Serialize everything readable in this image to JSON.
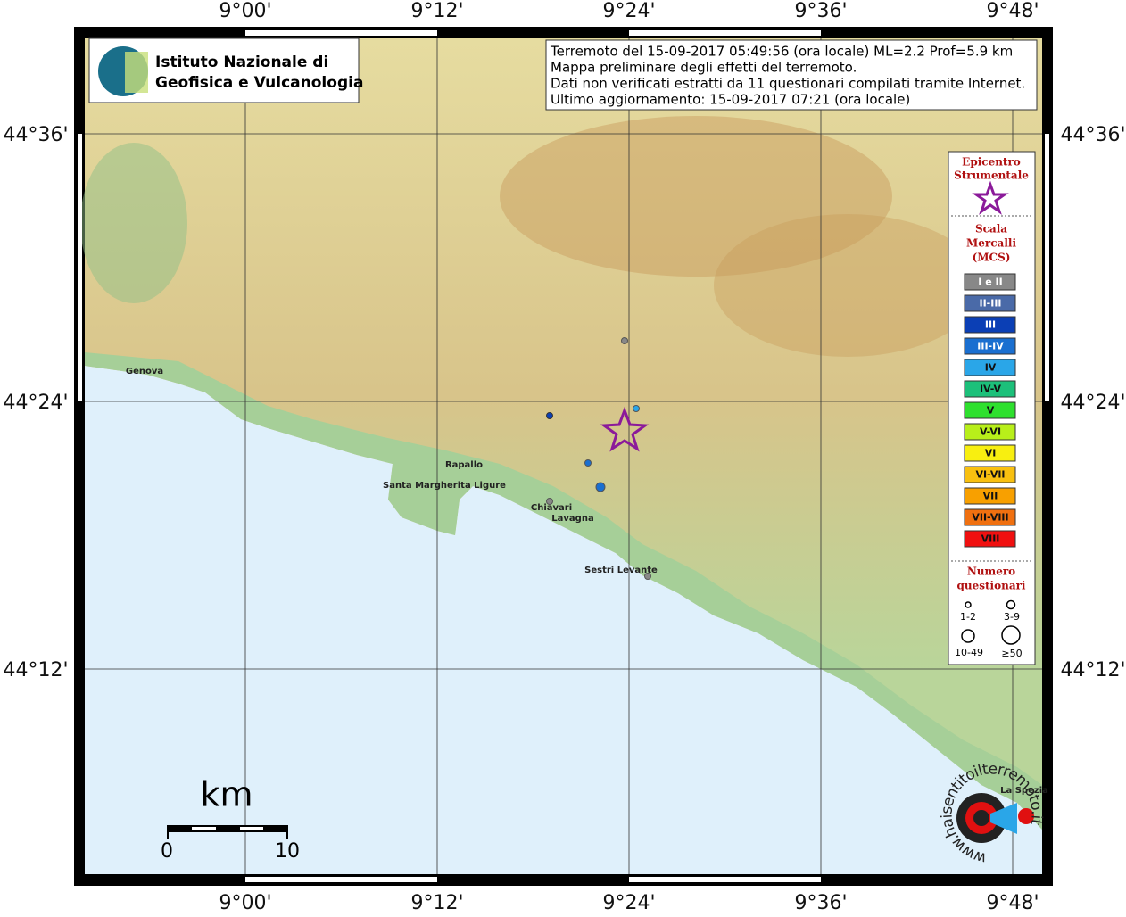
{
  "logo": {
    "line1": "Istituto Nazionale di",
    "line2": "Geofisica e Vulcanologia"
  },
  "info": [
    "Terremoto del 15-09-2017 05:49:56 (ora locale) ML=2.2 Prof=5.9 km",
    "Mappa preliminare degli effetti del terremoto.",
    "Dati non verificati estratti da 11 questionari compilati tramite Internet.",
    "Ultimo aggiornamento: 15-09-2017 07:21 (ora locale)"
  ],
  "lon_labels": [
    "9°00'",
    "9°12'",
    "9°24'",
    "9°36'",
    "9°48'"
  ],
  "lat_labels": [
    "44°36'",
    "44°24'",
    "44°12'"
  ],
  "cities": [
    "Genova",
    "Rapallo",
    "Santa Margherita Ligure",
    "Chiavari",
    "Lavagna",
    "Sestri Levante",
    "La Spezia"
  ],
  "legend": {
    "epicenter": [
      "Epicentro",
      "Strumentale"
    ],
    "scale": [
      "Scala",
      "Mercalli",
      "(MCS)"
    ],
    "classes": [
      {
        "label": "I e II",
        "color": "#888888"
      },
      {
        "label": "II-III",
        "color": "#4a6aa8"
      },
      {
        "label": "III",
        "color": "#0b3fb5"
      },
      {
        "label": "III-IV",
        "color": "#1a6fd0"
      },
      {
        "label": "IV",
        "color": "#2aa6e8"
      },
      {
        "label": "IV-V",
        "color": "#1cc07a"
      },
      {
        "label": "V",
        "color": "#2ee02e"
      },
      {
        "label": "V-VI",
        "color": "#b8ef1a"
      },
      {
        "label": "VI",
        "color": "#f8ef10"
      },
      {
        "label": "VI-VII",
        "color": "#f8c010"
      },
      {
        "label": "VII",
        "color": "#f8a000"
      },
      {
        "label": "VII-VIII",
        "color": "#f07010"
      },
      {
        "label": "VIII",
        "color": "#f01010"
      }
    ],
    "count_title": [
      "Numero",
      "questionari"
    ],
    "counts": [
      "1-2",
      "3-9",
      "10-49",
      "≥50"
    ]
  },
  "scale_bar": {
    "unit": "km",
    "start": "0",
    "end": "10"
  },
  "site": "www.haisentitoilterremoto.it"
}
